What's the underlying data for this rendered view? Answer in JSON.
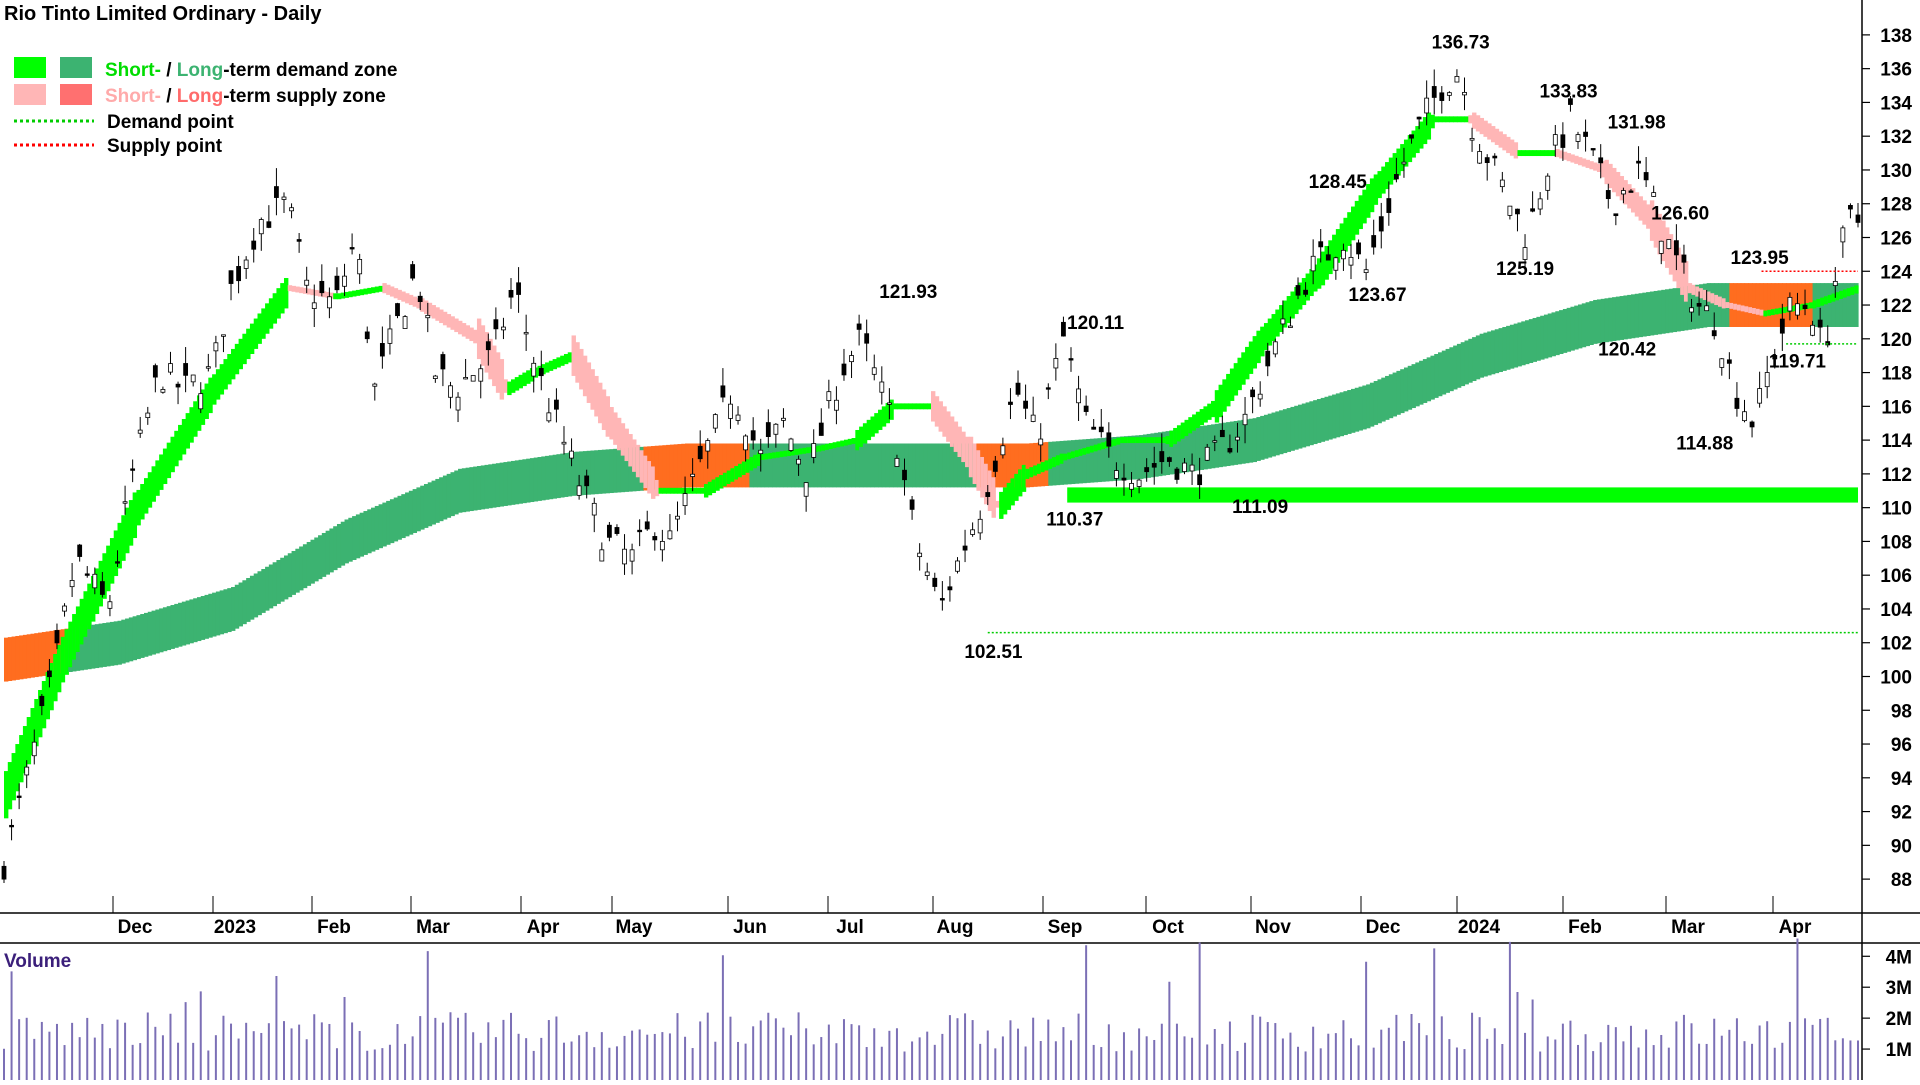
{
  "title": "Rio Tinto Limited Ordinary - Daily",
  "legend": {
    "short_word": "Short-",
    "slash": " / ",
    "long_word": "Long",
    "demand_suffix": "-term demand zone",
    "supply_suffix": "-term supply zone",
    "demand_point": "Demand point",
    "supply_point": "Supply point"
  },
  "colors": {
    "short_demand": "#00ff00",
    "long_demand": "#3cb371",
    "short_supply": "#ffb6b6",
    "long_supply": "#ff7070",
    "supply_zone_band": "#ff6d1f",
    "demand_point": "#00cc00",
    "supply_point": "#ff0000",
    "volume_bar": "#7b6fb5",
    "candle": "#000000"
  },
  "volume_label": "Volume",
  "chart_data": {
    "type": "candlestick",
    "ylim": [
      87,
      139
    ],
    "y_ticks": [
      88,
      90,
      92,
      94,
      96,
      98,
      100,
      102,
      104,
      106,
      108,
      110,
      112,
      114,
      116,
      118,
      120,
      122,
      124,
      126,
      128,
      130,
      132,
      134,
      136,
      138
    ],
    "x_labels": [
      "Dec",
      "2023",
      "Feb",
      "Mar",
      "Apr",
      "May",
      "Jun",
      "Jul",
      "Aug",
      "Sep",
      "Oct",
      "Nov",
      "Dec",
      "2024",
      "Feb",
      "Mar",
      "Apr"
    ],
    "price_path": [
      [
        0,
        89
      ],
      [
        12,
        94
      ],
      [
        26,
        100
      ],
      [
        38,
        107
      ],
      [
        55,
        104
      ],
      [
        68,
        112
      ],
      [
        82,
        118
      ],
      [
        95,
        117
      ],
      [
        110,
        118
      ],
      [
        120,
        123
      ],
      [
        135,
        127
      ],
      [
        150,
        128
      ],
      [
        160,
        123
      ],
      [
        175,
        122
      ],
      [
        186,
        126
      ],
      [
        196,
        117
      ],
      [
        205,
        120
      ],
      [
        218,
        124
      ],
      [
        228,
        118
      ],
      [
        238,
        117
      ],
      [
        258,
        119
      ],
      [
        270,
        123
      ],
      [
        282,
        118
      ],
      [
        302,
        112
      ],
      [
        318,
        108
      ],
      [
        332,
        107
      ],
      [
        344,
        109
      ],
      [
        352,
        108
      ],
      [
        370,
        113
      ],
      [
        385,
        117
      ],
      [
        400,
        113
      ],
      [
        412,
        115
      ],
      [
        425,
        112
      ],
      [
        442,
        118
      ],
      [
        453,
        120
      ],
      [
        463,
        117
      ],
      [
        470,
        115
      ],
      [
        482,
        108
      ],
      [
        495,
        104
      ],
      [
        505,
        107
      ],
      [
        516,
        110
      ],
      [
        535,
        117
      ],
      [
        546,
        114
      ],
      [
        560,
        120
      ],
      [
        572,
        115
      ],
      [
        585,
        113
      ],
      [
        600,
        112
      ],
      [
        615,
        113
      ],
      [
        628,
        112
      ],
      [
        640,
        113
      ],
      [
        655,
        115
      ],
      [
        670,
        119
      ],
      [
        690,
        124
      ],
      [
        708,
        126
      ],
      [
        720,
        124
      ],
      [
        738,
        130
      ],
      [
        750,
        133
      ],
      [
        760,
        135
      ],
      [
        770,
        136
      ],
      [
        775,
        133
      ],
      [
        792,
        129
      ],
      [
        805,
        126
      ],
      [
        815,
        130
      ],
      [
        828,
        133
      ],
      [
        838,
        131
      ],
      [
        850,
        128
      ],
      [
        865,
        130
      ],
      [
        878,
        126
      ],
      [
        895,
        122
      ],
      [
        905,
        121
      ],
      [
        915,
        117
      ],
      [
        925,
        115
      ],
      [
        935,
        119
      ],
      [
        945,
        122
      ],
      [
        955,
        122
      ],
      [
        962,
        119
      ],
      [
        970,
        125
      ],
      [
        976,
        127
      ],
      [
        980,
        127
      ]
    ],
    "short_term_ma": [
      [
        0,
        93
      ],
      [
        30,
        101
      ],
      [
        70,
        110
      ],
      [
        110,
        117
      ],
      [
        150,
        123
      ],
      [
        175,
        122.5
      ],
      [
        200,
        123
      ],
      [
        220,
        122
      ],
      [
        250,
        120
      ],
      [
        265,
        117
      ],
      [
        280,
        118
      ],
      [
        300,
        119
      ],
      [
        320,
        115
      ],
      [
        345,
        111
      ],
      [
        370,
        111
      ],
      [
        400,
        113
      ],
      [
        430,
        113.5
      ],
      [
        450,
        114
      ],
      [
        470,
        116
      ],
      [
        490,
        116
      ],
      [
        510,
        113
      ],
      [
        525,
        110
      ],
      [
        540,
        112
      ],
      [
        560,
        113
      ],
      [
        590,
        114
      ],
      [
        615,
        114
      ],
      [
        640,
        116
      ],
      [
        665,
        120
      ],
      [
        695,
        124
      ],
      [
        725,
        129
      ],
      [
        755,
        133
      ],
      [
        775,
        133
      ],
      [
        800,
        131
      ],
      [
        820,
        131
      ],
      [
        845,
        130
      ],
      [
        870,
        127
      ],
      [
        890,
        123
      ],
      [
        910,
        122
      ],
      [
        930,
        121.5
      ],
      [
        955,
        122
      ],
      [
        980,
        123
      ]
    ],
    "long_term_ma": [
      [
        0,
        101
      ],
      [
        60,
        102
      ],
      [
        120,
        104
      ],
      [
        180,
        108
      ],
      [
        240,
        111
      ],
      [
        300,
        112
      ],
      [
        360,
        112.5
      ],
      [
        420,
        112.5
      ],
      [
        480,
        112.5
      ],
      [
        540,
        112.5
      ],
      [
        600,
        113
      ],
      [
        660,
        114
      ],
      [
        720,
        116
      ],
      [
        780,
        119
      ],
      [
        840,
        121
      ],
      [
        900,
        122
      ],
      [
        940,
        122
      ],
      [
        980,
        122
      ]
    ],
    "annotations": [
      {
        "text": "136.73",
        "x": 770,
        "y": 136.73,
        "pos": "above"
      },
      {
        "text": "133.83",
        "x": 827,
        "y": 133.83,
        "pos": "above"
      },
      {
        "text": "131.98",
        "x": 863,
        "y": 131.98,
        "pos": "above"
      },
      {
        "text": "128.45",
        "x": 705,
        "y": 128.45,
        "pos": "above"
      },
      {
        "text": "126.60",
        "x": 886,
        "y": 126.6,
        "pos": "above"
      },
      {
        "text": "125.19",
        "x": 804,
        "y": 125.19,
        "pos": "below"
      },
      {
        "text": "123.95",
        "x": 928,
        "y": 123.95,
        "pos": "above"
      },
      {
        "text": "123.67",
        "x": 726,
        "y": 123.67,
        "pos": "below"
      },
      {
        "text": "121.93",
        "x": 478,
        "y": 121.93,
        "pos": "above"
      },
      {
        "text": "120.42",
        "x": 858,
        "y": 120.42,
        "pos": "below"
      },
      {
        "text": "120.11",
        "x": 577,
        "y": 120.11,
        "pos": "above"
      },
      {
        "text": "119.71",
        "x": 948,
        "y": 119.71,
        "pos": "below"
      },
      {
        "text": "114.88",
        "x": 899,
        "y": 114.88,
        "pos": "below"
      },
      {
        "text": "111.09",
        "x": 664,
        "y": 111.09,
        "pos": "below"
      },
      {
        "text": "110.37",
        "x": 566,
        "y": 110.37,
        "pos": "below"
      },
      {
        "text": "102.51",
        "x": 523,
        "y": 102.51,
        "pos": "below"
      }
    ],
    "demand_zone_long": {
      "from_x": 562,
      "to_x": 980,
      "low": 110.3,
      "high": 111.2
    },
    "demand_lines": [
      {
        "from_x": 520,
        "to_x": 980,
        "y": 102.6
      },
      {
        "from_x": 942,
        "to_x": 980,
        "y": 119.7
      }
    ],
    "supply_lines": [
      {
        "from_x": 929,
        "to_x": 980,
        "y": 124.0
      }
    ],
    "volume": {
      "ylim": [
        0,
        4.3
      ],
      "y_ticks": [
        [
          "4M",
          4
        ],
        [
          "3M",
          3
        ],
        [
          "2M",
          2
        ],
        [
          "1M",
          1
        ]
      ]
    }
  }
}
